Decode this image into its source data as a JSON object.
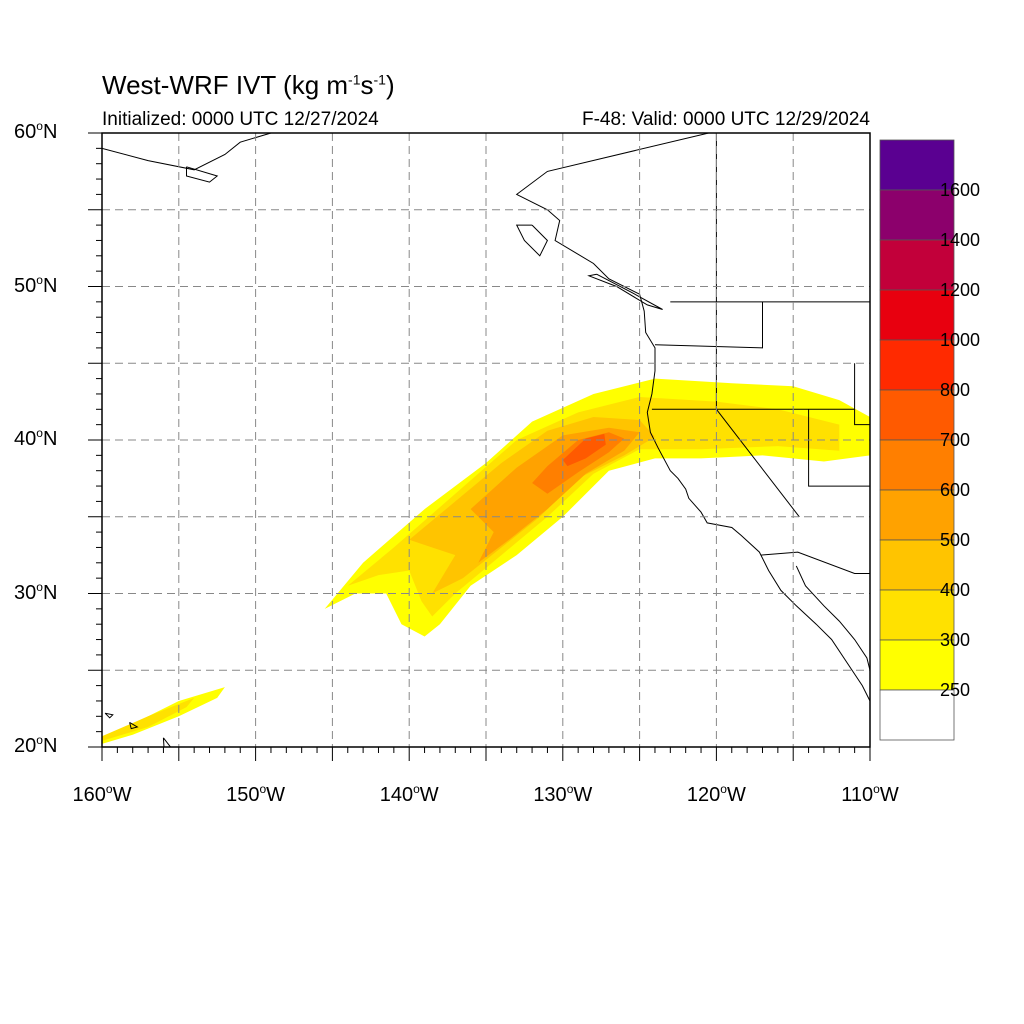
{
  "title": {
    "prefix": "West-WRF IVT (kg m",
    "sup1": "-1",
    "mid": "s",
    "sup2": "-1",
    "suffix": ")"
  },
  "subtitle_left": "Initialized: 0000 UTC 12/27/2024",
  "subtitle_right": "F-48: Valid: 0000 UTC 12/29/2024",
  "lat_labels": [
    {
      "deg": "60",
      "hemi": "N"
    },
    {
      "deg": "50",
      "hemi": "N"
    },
    {
      "deg": "40",
      "hemi": "N"
    },
    {
      "deg": "30",
      "hemi": "N"
    },
    {
      "deg": "20",
      "hemi": "N"
    }
  ],
  "lon_labels": [
    {
      "deg": "160",
      "hemi": "W"
    },
    {
      "deg": "150",
      "hemi": "W"
    },
    {
      "deg": "140",
      "hemi": "W"
    },
    {
      "deg": "130",
      "hemi": "W"
    },
    {
      "deg": "120",
      "hemi": "W"
    },
    {
      "deg": "110",
      "hemi": "W"
    }
  ],
  "colorbar": {
    "labels": [
      "1600",
      "1400",
      "1200",
      "1000",
      "800",
      "700",
      "600",
      "500",
      "400",
      "300",
      "250"
    ],
    "colors_top_to_bottom": [
      "#5a0091",
      "#8c006c",
      "#c2003a",
      "#e8000f",
      "#ff2a00",
      "#ff5a00",
      "#ff7f00",
      "#ffa200",
      "#ffc400",
      "#ffe100",
      "#ffff00",
      "#ffffff"
    ]
  },
  "map_extent": {
    "lon_min": -160,
    "lon_max": -110,
    "lat_min": 20,
    "lat_max": 60
  },
  "ivt_colors": {
    "c250": "#ffff00",
    "c300": "#ffe100",
    "c400": "#ffc400",
    "c500": "#ffa200",
    "c600": "#ff7f00",
    "c700": "#ff5a00"
  }
}
